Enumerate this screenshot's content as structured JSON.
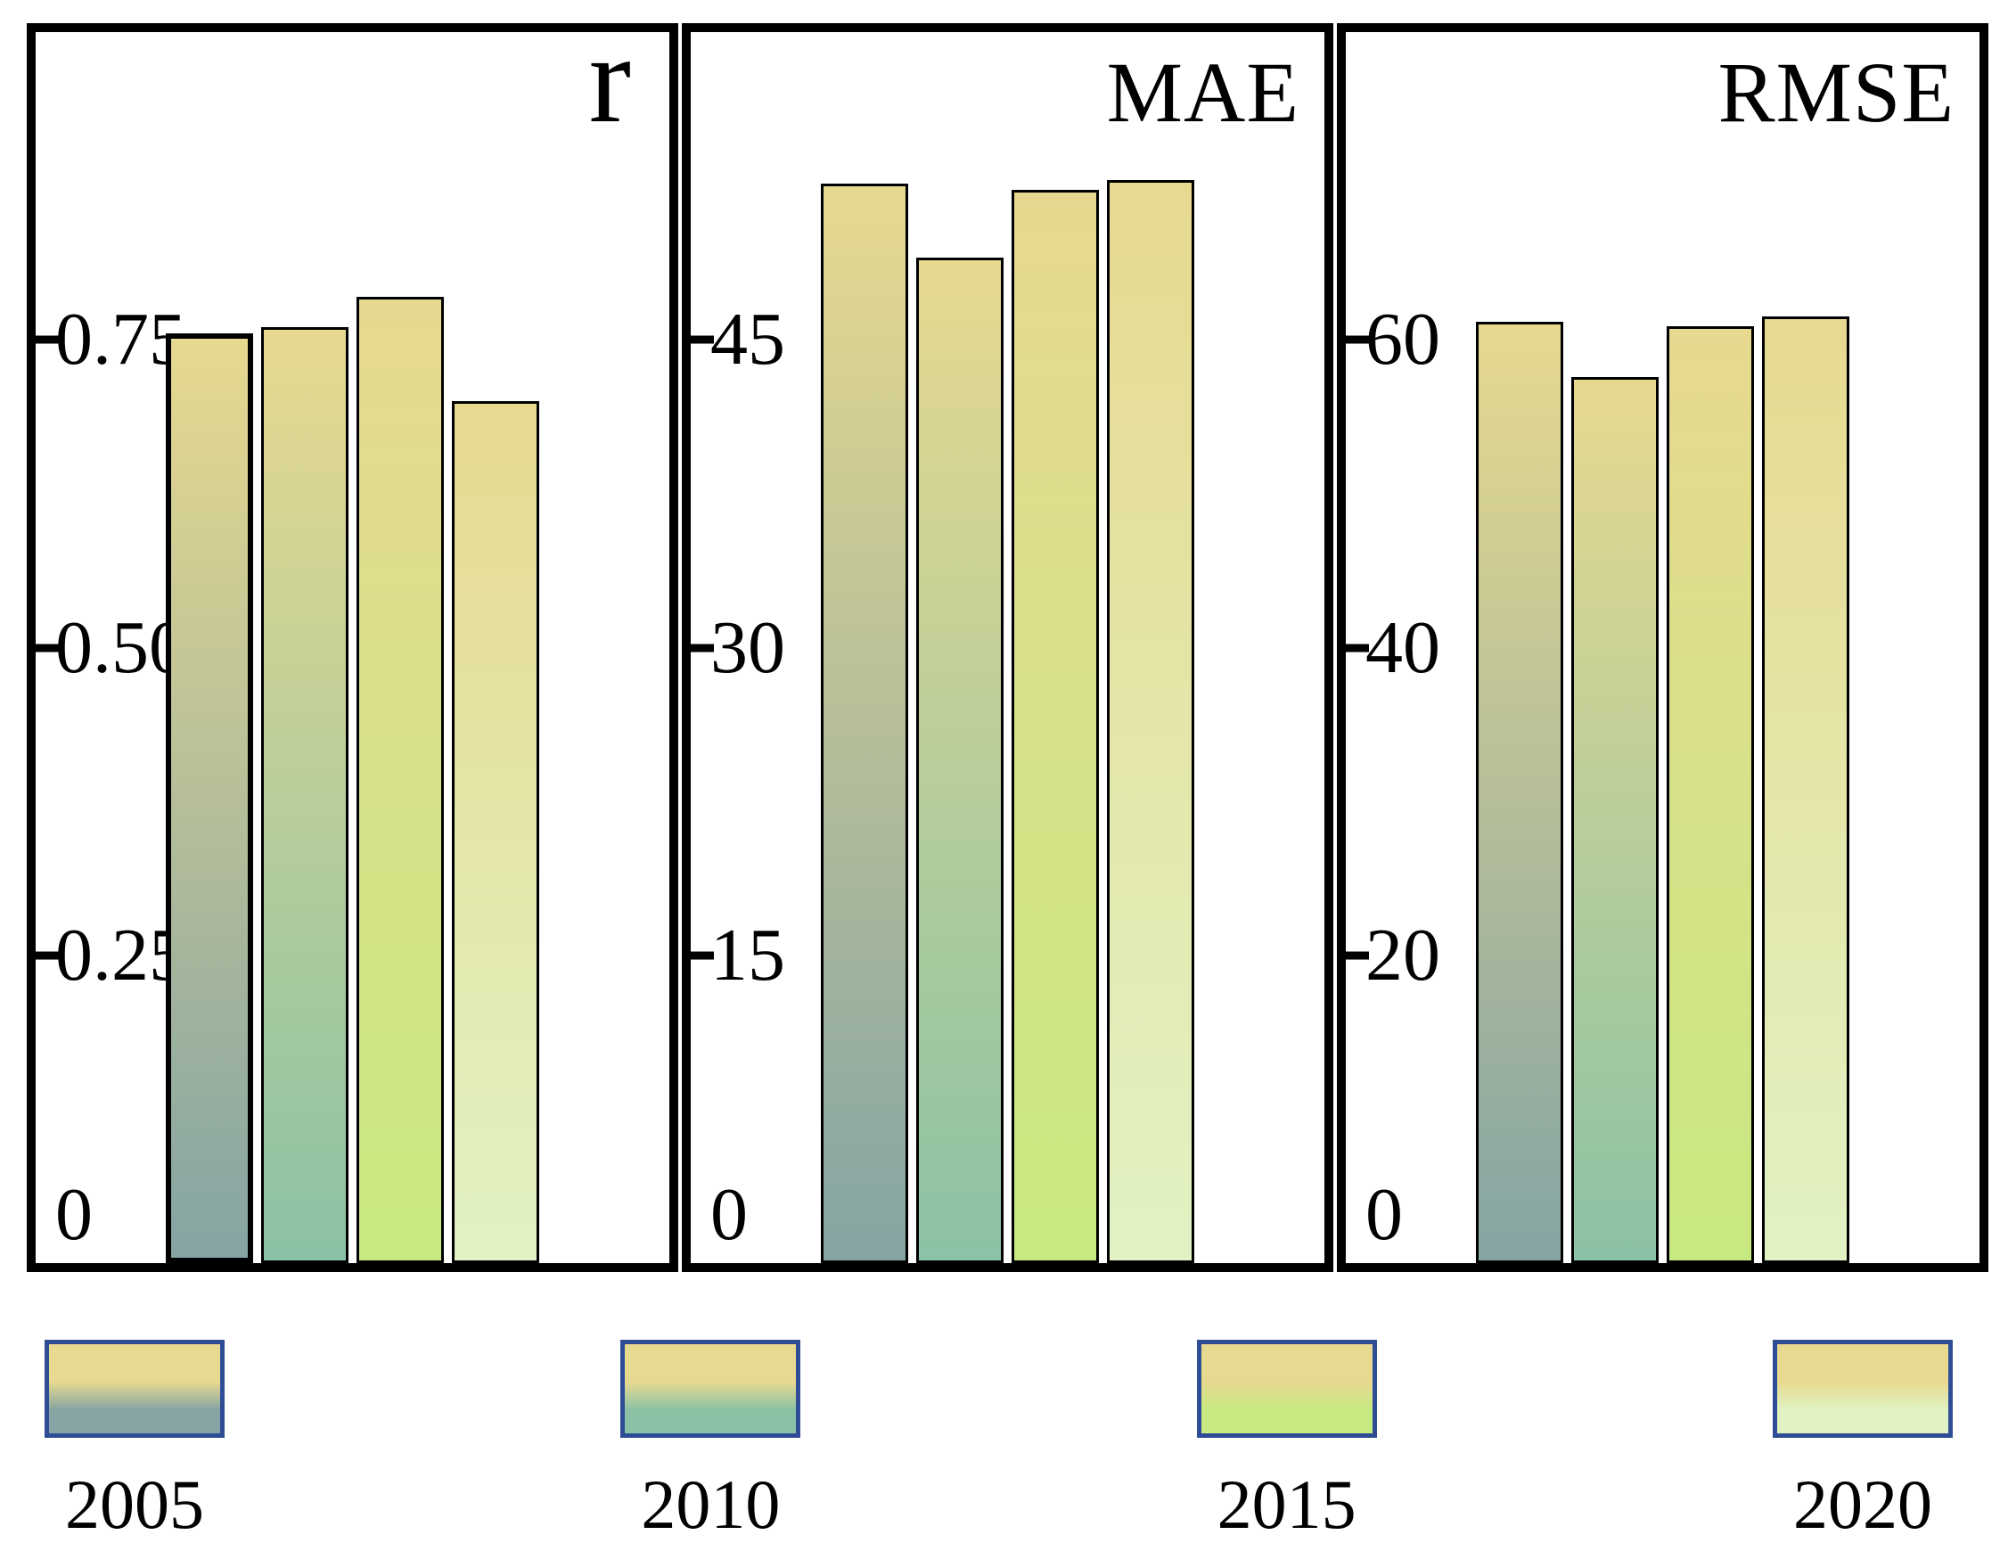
{
  "colors": {
    "background": "#ffffff",
    "axis": "#000000",
    "bar_top": "#e7d98f",
    "year_bottom": {
      "2005": "#85a4a3",
      "2010": "#8bc2a5",
      "2015": "#c7e981",
      "2020": "#e1f2c3"
    },
    "legend_border": "#2f4d96"
  },
  "chart_data": [
    {
      "id": "r",
      "type": "bar",
      "title": "r",
      "categories": [
        "2005",
        "2010",
        "2015",
        "2020"
      ],
      "values": [
        0.755,
        0.76,
        0.785,
        0.7
      ],
      "xlabel": "",
      "ylabel": "",
      "ylim": [
        0,
        1.0
      ],
      "yticks": [
        {
          "v": 0.75,
          "label": "0.75"
        },
        {
          "v": 0.5,
          "label": "0.50"
        },
        {
          "v": 0.25,
          "label": "0.25"
        },
        {
          "v": 0,
          "label": "0"
        }
      ],
      "grid": false,
      "legend_position": "below-figure",
      "emphasis_bar": 0
    },
    {
      "id": "mae",
      "type": "bar",
      "title": "MAE",
      "categories": [
        "2005",
        "2010",
        "2015",
        "2020"
      ],
      "values": [
        52.6,
        49.0,
        52.3,
        52.8
      ],
      "xlabel": "",
      "ylabel": "",
      "ylim": [
        0,
        60
      ],
      "yticks": [
        {
          "v": 45,
          "label": "45"
        },
        {
          "v": 30,
          "label": "30"
        },
        {
          "v": 15,
          "label": "15"
        },
        {
          "v": 0,
          "label": "0"
        }
      ],
      "grid": false,
      "legend_position": "below-figure",
      "emphasis_bar": null
    },
    {
      "id": "rmse",
      "type": "bar",
      "title": "RMSE",
      "categories": [
        "2005",
        "2010",
        "2015",
        "2020"
      ],
      "values": [
        61.2,
        57.6,
        60.9,
        61.5
      ],
      "xlabel": "",
      "ylabel": "",
      "ylim": [
        0,
        80
      ],
      "yticks": [
        {
          "v": 60,
          "label": "60"
        },
        {
          "v": 40,
          "label": "40"
        },
        {
          "v": 20,
          "label": "20"
        },
        {
          "v": 0,
          "label": "0"
        }
      ],
      "grid": false,
      "legend_position": "below-figure",
      "emphasis_bar": null
    }
  ],
  "legend": {
    "items": [
      {
        "label": "2005"
      },
      {
        "label": "2010"
      },
      {
        "label": "2015"
      },
      {
        "label": "2020"
      }
    ]
  }
}
